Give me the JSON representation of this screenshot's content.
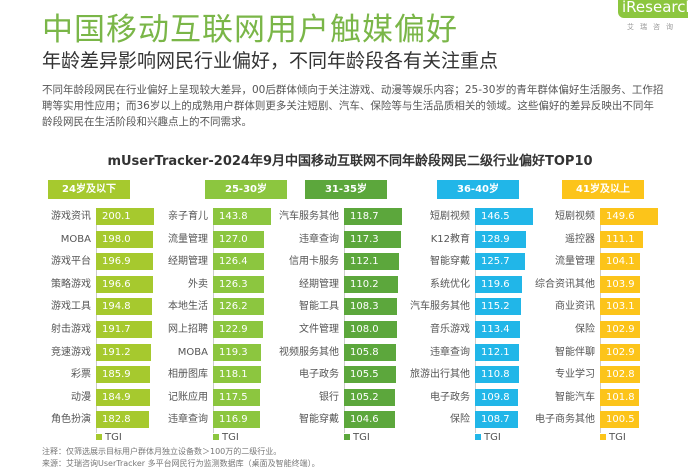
{
  "header": {
    "title": "中国移动互联网用户触媒偏好",
    "subtitle": "年龄差异影响网民行业偏好，不同年龄段各有关注重点",
    "description": "不同年龄段网民在行业偏好上呈现较大差异，00后群体倾向于关注游戏、动漫等娱乐内容；25-30岁的青年群体偏好生活服务、工作招聘等实用性应用；而36岁以上的成熟用户群体则更多关注短剧、汽车、保险等与生活品质相关的领域。这些偏好的差异反映出不同年龄段网民在生活阶段和兴趣点上的不同需求。",
    "logo": "iResearch",
    "logo_cn": "艾瑞咨询"
  },
  "chart_title": "mUserTracker-2024年9月中国移动互联网不同年龄段网民二级行业偏好TOP10",
  "notes": [
    "注释：仅筛选展示目标用户群体月独立设备数＞100万的二级行业。",
    "来源：艾瑞咨询UserTracker 多平台网民行为监测数据库（桌面及智能终端）。"
  ],
  "chart_data": [
    {
      "type": "bar",
      "orientation": "horizontal",
      "title": "24岁及以下",
      "legend": "TGI",
      "color": "#a6c92e",
      "categories": [
        "游戏资讯",
        "MOBA",
        "游戏平台",
        "策略游戏",
        "游戏工具",
        "射击游戏",
        "竞速游戏",
        "彩票",
        "动漫",
        "角色扮演"
      ],
      "values": [
        200.1,
        198.0,
        196.9,
        196.6,
        194.8,
        191.7,
        191.2,
        185.9,
        184.9,
        182.8
      ]
    },
    {
      "type": "bar",
      "orientation": "horizontal",
      "title": "25-30岁",
      "legend": "TGI",
      "color": "#8cc63f",
      "categories": [
        "亲子育儿",
        "流量管理",
        "经期管理",
        "外卖",
        "本地生活",
        "网上招聘",
        "MOBA",
        "相册图库",
        "记账应用",
        "违章查询"
      ],
      "values": [
        143.8,
        127.0,
        126.4,
        126.3,
        126.2,
        122.9,
        119.3,
        118.1,
        117.5,
        116.9
      ]
    },
    {
      "type": "bar",
      "orientation": "horizontal",
      "title": "31-35岁",
      "legend": "TGI",
      "color": "#5ca73c",
      "categories": [
        "汽车服务其他",
        "违章查询",
        "信用卡服务",
        "经期管理",
        "智能工具",
        "文件管理",
        "视频服务其他",
        "电子政务",
        "银行",
        "智能穿戴"
      ],
      "values": [
        118.7,
        117.3,
        112.1,
        110.2,
        108.3,
        108.0,
        105.8,
        105.5,
        105.2,
        104.6
      ]
    },
    {
      "type": "bar",
      "orientation": "horizontal",
      "title": "36-40岁",
      "legend": "TGI",
      "color": "#21b6e8",
      "categories": [
        "短剧视频",
        "K12教育",
        "智能穿戴",
        "系统优化",
        "汽车服务其他",
        "音乐游戏",
        "违章查询",
        "旅游出行其他",
        "电子政务",
        "保险"
      ],
      "values": [
        146.5,
        128.9,
        125.7,
        119.6,
        115.2,
        113.4,
        112.1,
        110.8,
        109.8,
        108.7
      ]
    },
    {
      "type": "bar",
      "orientation": "horizontal",
      "title": "41岁及以上",
      "legend": "TGI",
      "color": "#fcc41a",
      "categories": [
        "短剧视频",
        "遥控器",
        "流量管理",
        "综合资讯其他",
        "商业资讯",
        "保险",
        "智能伴聊",
        "专业学习",
        "智能汽车",
        "电子商务其他"
      ],
      "values": [
        149.6,
        111.1,
        104.1,
        103.9,
        103.1,
        102.9,
        102.9,
        102.8,
        101.8,
        100.5
      ]
    }
  ]
}
